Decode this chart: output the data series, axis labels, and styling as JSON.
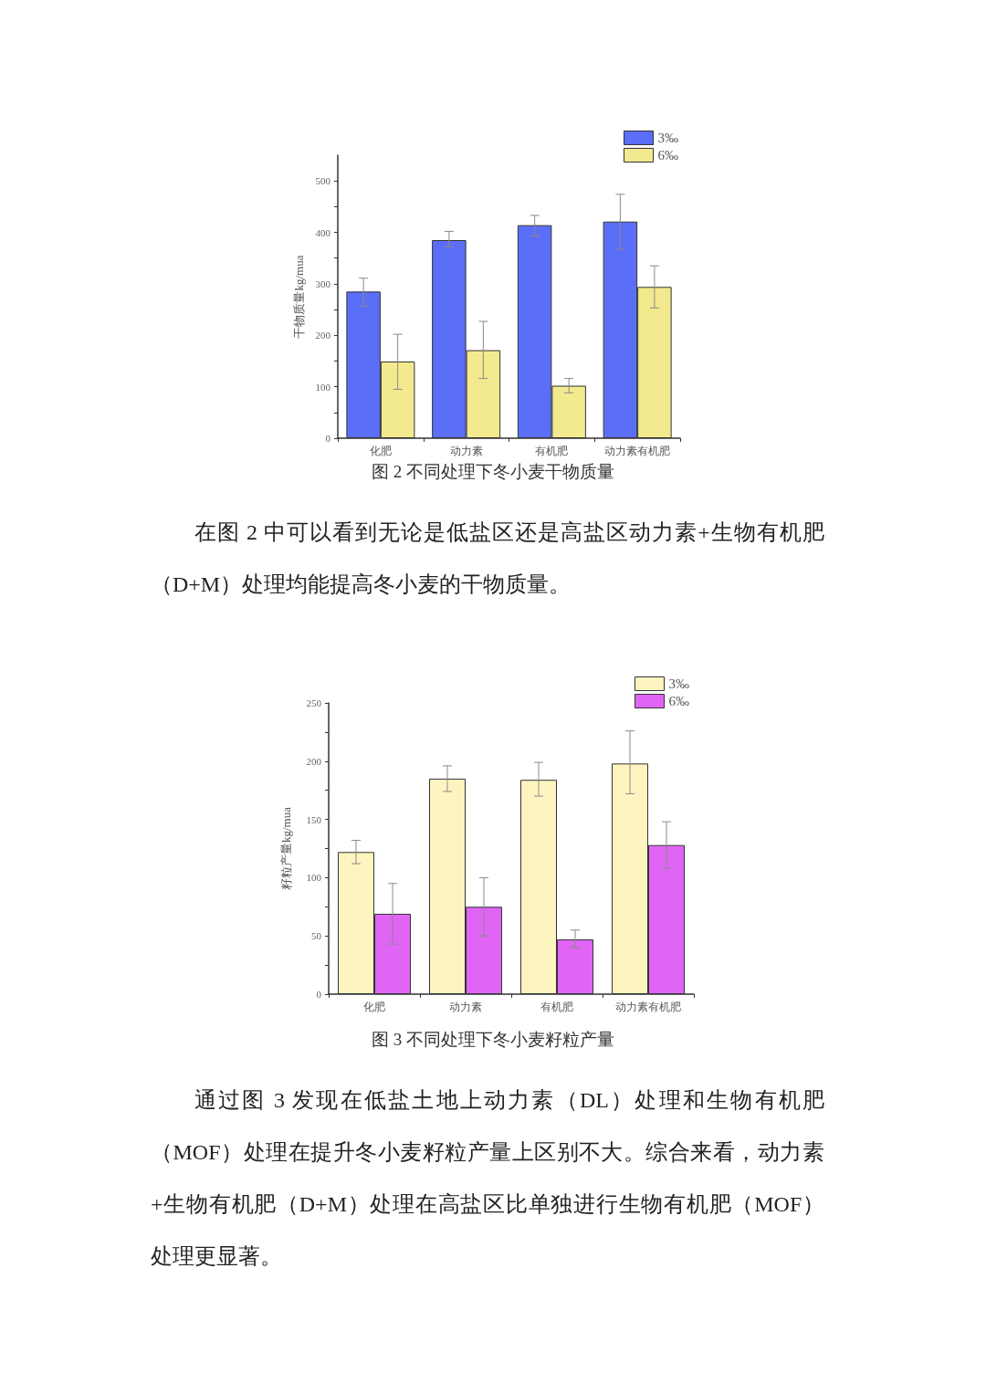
{
  "chart_data": [
    {
      "type": "bar",
      "title": "图 2 不同处理下冬小麦干物质量",
      "ylabel": "干物质量kg/mua",
      "categories": [
        "化肥",
        "动力素",
        "有机肥",
        "动力素有机肥"
      ],
      "series": [
        {
          "name": "3‰",
          "color": "#5b6ef7",
          "values": [
            285,
            385,
            414,
            421
          ],
          "errors": [
            [
              257,
              311
            ],
            [
              372,
              402
            ],
            [
              393,
              433
            ],
            [
              367,
              474
            ]
          ]
        },
        {
          "name": "6‰",
          "color": "#f3ea8f",
          "values": [
            149,
            171,
            102,
            294
          ],
          "errors": [
            [
              95,
              202
            ],
            [
              116,
              227
            ],
            [
              88,
              116
            ],
            [
              253,
              335
            ]
          ]
        }
      ],
      "ylim": [
        0,
        550
      ],
      "yticks": [
        0,
        {
          "value": 50,
          "label": null
        },
        100,
        {
          "value": 150,
          "label": null
        },
        200,
        {
          "value": 250,
          "label": null
        },
        300,
        {
          "value": 350,
          "label": null
        },
        400,
        {
          "value": 450,
          "label": null
        },
        500
      ],
      "legend": "top right",
      "annotations": [
        "在图 2 中可以看到无论是低盐区还是高盐区动力素+生物有机肥（D+M）处理均能提高冬小麦的干物质量。"
      ]
    },
    {
      "type": "bar",
      "title": "图 3 不同处理下冬小麦籽粒产量",
      "ylabel": "籽粒产量kg/mua",
      "categories": [
        "化肥",
        "动力素",
        "有机肥",
        "动力素有机肥"
      ],
      "series": [
        {
          "name": "3‰",
          "color": "#fdf4c0",
          "values": [
            122,
            185,
            184,
            198
          ],
          "errors": [
            [
              112,
              132
            ],
            [
              174,
              196
            ],
            [
              170,
              199
            ],
            [
              172,
              226
            ]
          ]
        },
        {
          "name": "6‰",
          "color": "#e065f5",
          "values": [
            69,
            75,
            47,
            128
          ],
          "errors": [
            [
              43,
              95
            ],
            [
              50,
              100
            ],
            [
              40,
              55
            ],
            [
              108,
              148
            ]
          ]
        }
      ],
      "ylim": [
        0,
        250
      ],
      "yticks": [
        0,
        {
          "value": 25,
          "label": null
        },
        50,
        {
          "value": 75,
          "label": null
        },
        100,
        {
          "value": 125,
          "label": null
        },
        150,
        {
          "value": 175,
          "label": null
        },
        200,
        {
          "value": 225,
          "label": null
        },
        250
      ],
      "legend": "top right",
      "annotations": [
        "通过图 3 发现在低盐土地上动力素（DL）处理和生物有机肥（MOF）处理在提升冬小麦籽粒产量上区别不大。综合来看，动力素+生物有机肥（D+M）处理在高盐区比单独进行生物有机肥（MOF）处理更显著。"
      ]
    }
  ]
}
